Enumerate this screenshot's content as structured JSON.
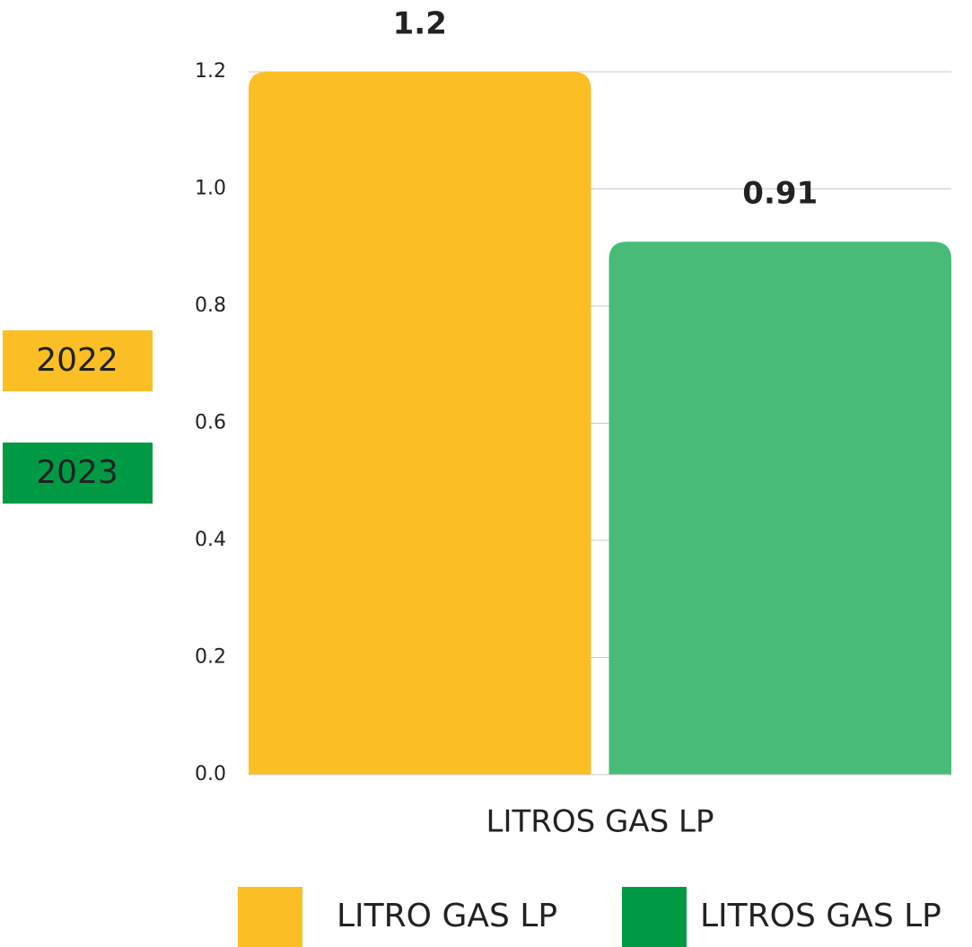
{
  "chart_data": {
    "type": "bar",
    "categories": [
      "LITROS GAS LP"
    ],
    "series": [
      {
        "name": "LITRO GAS LP",
        "color": "#fbbe24",
        "legend_color": "#fbbe24",
        "values": [
          1.2
        ]
      },
      {
        "name": "LITROS GAS LP",
        "color": "#48bb78",
        "legend_color": "#009a44",
        "values": [
          0.91
        ]
      }
    ],
    "ylim": [
      0,
      1.2
    ],
    "yticks": [
      {
        "value": 0,
        "label": "0.0"
      },
      0.2,
      0.4,
      0.6,
      0.8,
      {
        "value": 1,
        "label": "1.0"
      },
      1.2
    ],
    "grid": true,
    "legend": "bottom",
    "annotations": [
      {
        "text": "2022",
        "color": "#fbbe24"
      },
      {
        "text": "2023",
        "color": "#009a44"
      }
    ]
  }
}
